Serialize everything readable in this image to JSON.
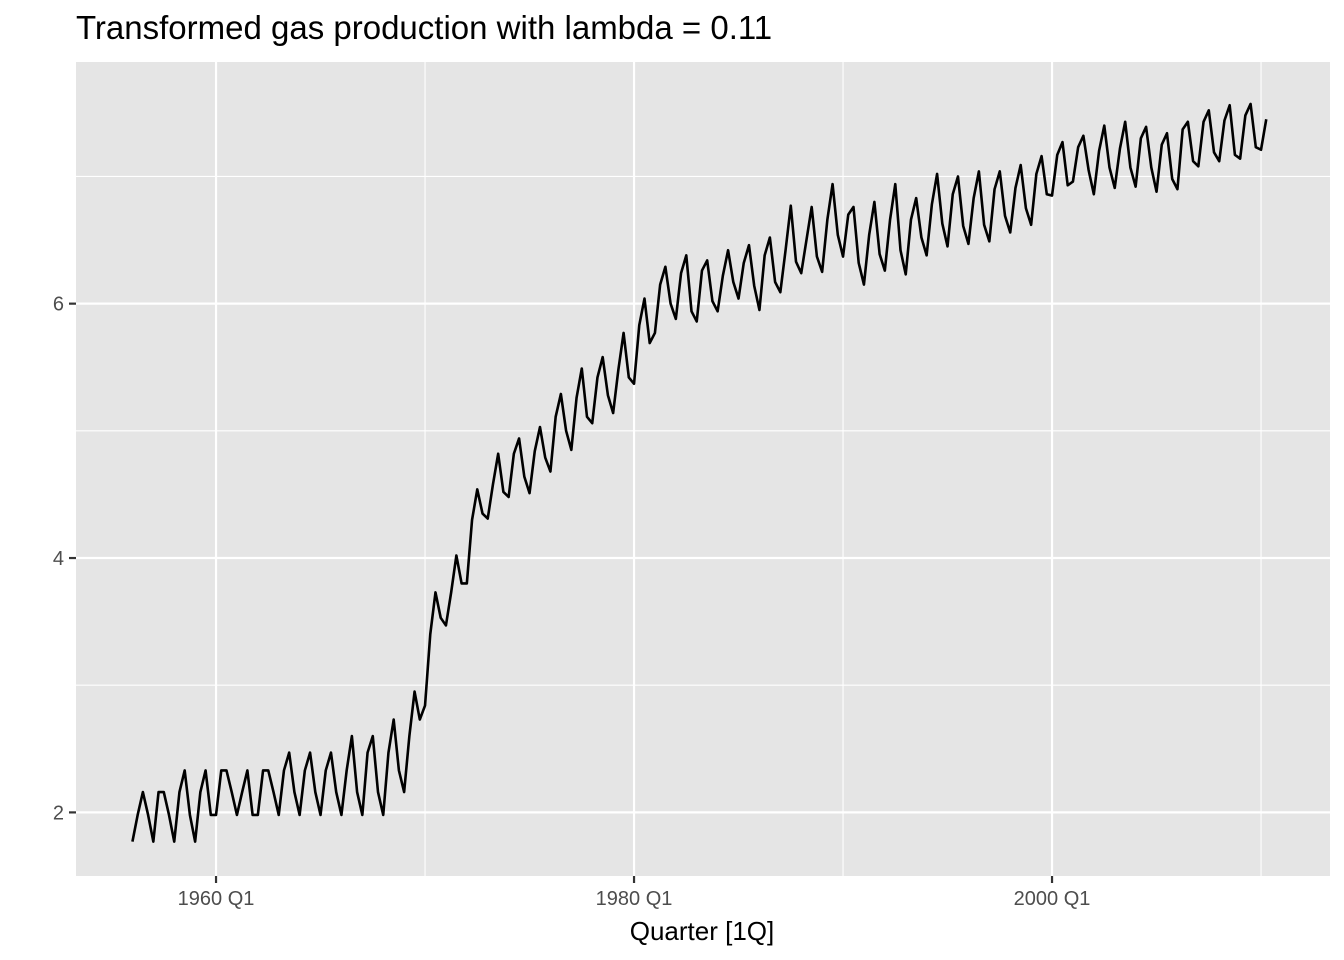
{
  "chart_data": {
    "type": "line",
    "title": "Transformed gas production with lambda =  0.11",
    "xlabel": "Quarter [1Q]",
    "ylabel": "",
    "x_ticks": [
      {
        "label": "1960 Q1",
        "value": 1960.0
      },
      {
        "label": "1980 Q1",
        "value": 1980.0
      },
      {
        "label": "2000 Q1",
        "value": 2000.0
      }
    ],
    "x_minor_breaks": [
      1970.0,
      1990.0,
      2010.0
    ],
    "y_ticks": [
      2,
      4,
      6
    ],
    "y_minor_breaks": [
      3,
      5,
      7
    ],
    "xlim": [
      1953.3,
      2013.3
    ],
    "ylim": [
      1.5,
      7.9
    ],
    "grid": true,
    "line_color": "#000000",
    "panel_background": "#e5e5e5",
    "grid_color": "#ffffff",
    "series": [
      {
        "start": "1956 Q1",
        "x_start": 1956.0,
        "step": 0.25,
        "values": [
          1.77,
          1.98,
          2.16,
          1.98,
          1.77,
          2.16,
          2.16,
          1.98,
          1.77,
          2.16,
          2.33,
          1.98,
          1.77,
          2.16,
          2.33,
          1.98,
          1.98,
          2.33,
          2.33,
          2.16,
          1.98,
          2.16,
          2.33,
          1.98,
          1.98,
          2.33,
          2.33,
          2.16,
          1.98,
          2.33,
          2.47,
          2.16,
          1.98,
          2.33,
          2.47,
          2.16,
          1.98,
          2.33,
          2.47,
          2.16,
          1.98,
          2.33,
          2.6,
          2.16,
          1.98,
          2.47,
          2.6,
          2.16,
          1.98,
          2.47,
          2.73,
          2.33,
          2.16,
          2.6,
          2.95,
          2.73,
          2.84,
          3.4,
          3.73,
          3.53,
          3.47,
          3.73,
          4.02,
          3.8,
          3.8,
          4.3,
          4.54,
          4.35,
          4.31,
          4.58,
          4.82,
          4.52,
          4.48,
          4.82,
          4.94,
          4.64,
          4.51,
          4.84,
          5.03,
          4.79,
          4.68,
          5.11,
          5.29,
          5.0,
          4.85,
          5.26,
          5.49,
          5.11,
          5.06,
          5.42,
          5.58,
          5.28,
          5.14,
          5.48,
          5.77,
          5.42,
          5.37,
          5.83,
          6.04,
          5.69,
          5.77,
          6.15,
          6.29,
          6.0,
          5.88,
          6.24,
          6.38,
          5.94,
          5.86,
          6.26,
          6.34,
          6.02,
          5.94,
          6.22,
          6.42,
          6.17,
          6.04,
          6.32,
          6.46,
          6.14,
          5.95,
          6.38,
          6.52,
          6.17,
          6.09,
          6.42,
          6.77,
          6.33,
          6.24,
          6.5,
          6.76,
          6.37,
          6.25,
          6.66,
          6.94,
          6.54,
          6.37,
          6.7,
          6.76,
          6.32,
          6.15,
          6.54,
          6.8,
          6.39,
          6.26,
          6.66,
          6.94,
          6.42,
          6.23,
          6.66,
          6.83,
          6.52,
          6.38,
          6.78,
          7.02,
          6.63,
          6.45,
          6.86,
          7.0,
          6.61,
          6.47,
          6.83,
          7.04,
          6.62,
          6.49,
          6.9,
          7.04,
          6.69,
          6.56,
          6.91,
          7.09,
          6.75,
          6.62,
          7.02,
          7.16,
          6.86,
          6.85,
          7.17,
          7.27,
          6.93,
          6.96,
          7.23,
          7.32,
          7.05,
          6.86,
          7.2,
          7.4,
          7.07,
          6.91,
          7.22,
          7.43,
          7.07,
          6.92,
          7.3,
          7.39,
          7.07,
          6.88,
          7.25,
          7.34,
          6.98,
          6.9,
          7.37,
          7.43,
          7.12,
          7.08,
          7.43,
          7.52,
          7.19,
          7.12,
          7.44,
          7.56,
          7.17,
          7.14,
          7.48,
          7.57,
          7.23,
          7.21,
          7.45
        ]
      }
    ]
  }
}
